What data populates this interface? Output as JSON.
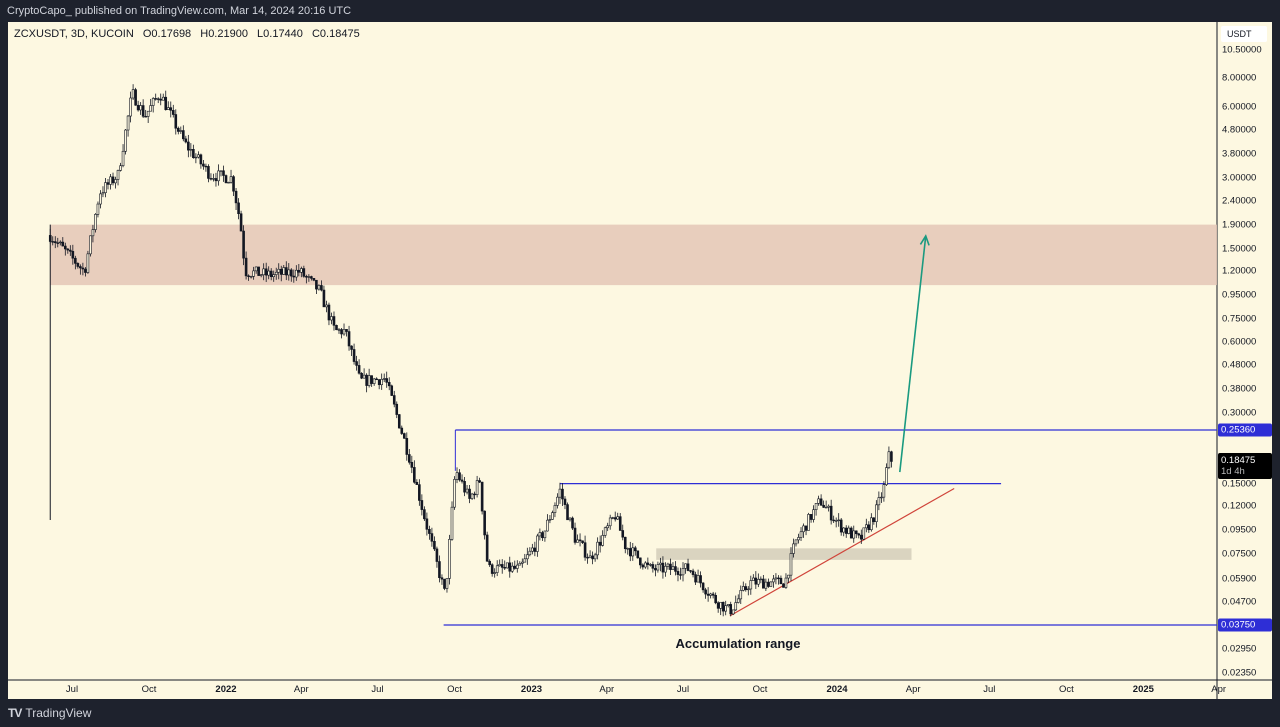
{
  "header": {
    "publisher_line": "CryptoCapo_ published on TradingView.com, Mar 14, 2024 20:16 UTC"
  },
  "legend": {
    "symbol": "ZCXUSDT, 3D, KUCOIN",
    "open": "O0.17698",
    "high": "H0.21900",
    "low": "L0.17440",
    "close": "C0.18475"
  },
  "price_axis": {
    "unit": "USDT",
    "ticks": [
      "10.50000",
      "8.00000",
      "6.00000",
      "4.80000",
      "3.80000",
      "3.00000",
      "2.40000",
      "1.90000",
      "1.50000",
      "1.20000",
      "0.95000",
      "0.75000",
      "0.60000",
      "0.48000",
      "0.38000",
      "0.30000",
      "0.15000",
      "0.12000",
      "0.09500",
      "0.07500",
      "0.05900",
      "0.04700",
      "0.02950",
      "0.02350"
    ]
  },
  "tags": {
    "upper_level": "0.25360",
    "lower_level": "0.03750",
    "last_price": "0.18475",
    "countdown": "1d 4h"
  },
  "time_axis": {
    "ticks": [
      {
        "label": "Jul",
        "date": "2021-07-01"
      },
      {
        "label": "Oct",
        "date": "2021-10-01"
      },
      {
        "label": "2022",
        "date": "2022-01-01",
        "year": true
      },
      {
        "label": "Apr",
        "date": "2022-04-01"
      },
      {
        "label": "Jul",
        "date": "2022-07-01"
      },
      {
        "label": "Oct",
        "date": "2022-10-01"
      },
      {
        "label": "2023",
        "date": "2023-01-01",
        "year": true
      },
      {
        "label": "Apr",
        "date": "2023-04-01"
      },
      {
        "label": "Jul",
        "date": "2023-07-01"
      },
      {
        "label": "Oct",
        "date": "2023-10-01"
      },
      {
        "label": "2024",
        "date": "2024-01-01",
        "year": true
      },
      {
        "label": "Apr",
        "date": "2024-04-01"
      },
      {
        "label": "Jul",
        "date": "2024-07-01"
      },
      {
        "label": "Oct",
        "date": "2024-10-01"
      },
      {
        "label": "2025",
        "date": "2025-01-01",
        "year": true
      },
      {
        "label": "Apr",
        "date": "2025-04-01"
      }
    ]
  },
  "annotation": {
    "text": "Accumulation range"
  },
  "colors": {
    "level": "#2e2ed6",
    "zone": "#e4c7b6",
    "box": "#d6cfbc",
    "trend": "#d0443a",
    "arrow": "#1a9a80"
  },
  "chart_data": {
    "type": "candlestick",
    "title": "ZCXUSDT, 3D, KUCOIN",
    "yscale": "log",
    "ylim": [
      0.0215,
      11
    ],
    "approx_close_path": [
      [
        "2021-06-05",
        1.71
      ],
      [
        "2021-07-16",
        1.2
      ],
      [
        "2021-08-03",
        2.6
      ],
      [
        "2021-08-25",
        3.09
      ],
      [
        "2021-09-11",
        6.9
      ],
      [
        "2021-09-26",
        5.5
      ],
      [
        "2021-10-14",
        6.9
      ],
      [
        "2021-11-13",
        4.2
      ],
      [
        "2021-12-13",
        3.1
      ],
      [
        "2022-01-08",
        3.0
      ],
      [
        "2022-01-18",
        1.96
      ],
      [
        "2022-01-24",
        1.2
      ],
      [
        "2022-02-23",
        1.16
      ],
      [
        "2022-03-30",
        1.2
      ],
      [
        "2022-04-23",
        0.99
      ],
      [
        "2022-05-11",
        0.67
      ],
      [
        "2022-05-23",
        0.67
      ],
      [
        "2022-06-10",
        0.41
      ],
      [
        "2022-07-10",
        0.42
      ],
      [
        "2022-07-22",
        0.31
      ],
      [
        "2022-08-09",
        0.19
      ],
      [
        "2022-08-27",
        0.105
      ],
      [
        "2022-09-20",
        0.05
      ],
      [
        "2022-10-02",
        0.172
      ],
      [
        "2022-10-19",
        0.128
      ],
      [
        "2022-10-31",
        0.155
      ],
      [
        "2022-11-10",
        0.065
      ],
      [
        "2022-12-18",
        0.065
      ],
      [
        "2023-01-17",
        0.095
      ],
      [
        "2023-02-04",
        0.14
      ],
      [
        "2023-02-22",
        0.088
      ],
      [
        "2023-03-12",
        0.072
      ],
      [
        "2023-04-11",
        0.11
      ],
      [
        "2023-04-23",
        0.082
      ],
      [
        "2023-05-22",
        0.065
      ],
      [
        "2023-07-09",
        0.065
      ],
      [
        "2023-08-08",
        0.048
      ],
      [
        "2023-08-26",
        0.043
      ],
      [
        "2023-09-19",
        0.057
      ],
      [
        "2023-10-31",
        0.057
      ],
      [
        "2023-11-12",
        0.084
      ],
      [
        "2023-12-12",
        0.127
      ],
      [
        "2024-01-05",
        0.099
      ],
      [
        "2024-01-28",
        0.086
      ],
      [
        "2024-02-15",
        0.11
      ],
      [
        "2024-02-27",
        0.148
      ],
      [
        "2024-03-02",
        0.198
      ],
      [
        "2024-03-08",
        0.185
      ]
    ],
    "levels": [
      {
        "price": 0.2536,
        "from": "2022-10-02"
      },
      {
        "price": 0.15,
        "from": "2023-02-04",
        "to": "2024-07-15"
      },
      {
        "price": 0.0375,
        "from": "2022-09-18"
      }
    ],
    "zone": {
      "low": 1.05,
      "high": 1.9,
      "from": "2021-06-05"
    },
    "support_box": {
      "low": 0.071,
      "high": 0.0795,
      "from": "2023-05-30",
      "to": "2024-03-30"
    },
    "trendline": [
      [
        "2023-08-26",
        0.041
      ],
      [
        "2024-05-20",
        0.143
      ]
    ],
    "target_arrow": [
      [
        "2024-03-16",
        0.168
      ],
      [
        "2024-04-16",
        1.7
      ]
    ]
  }
}
